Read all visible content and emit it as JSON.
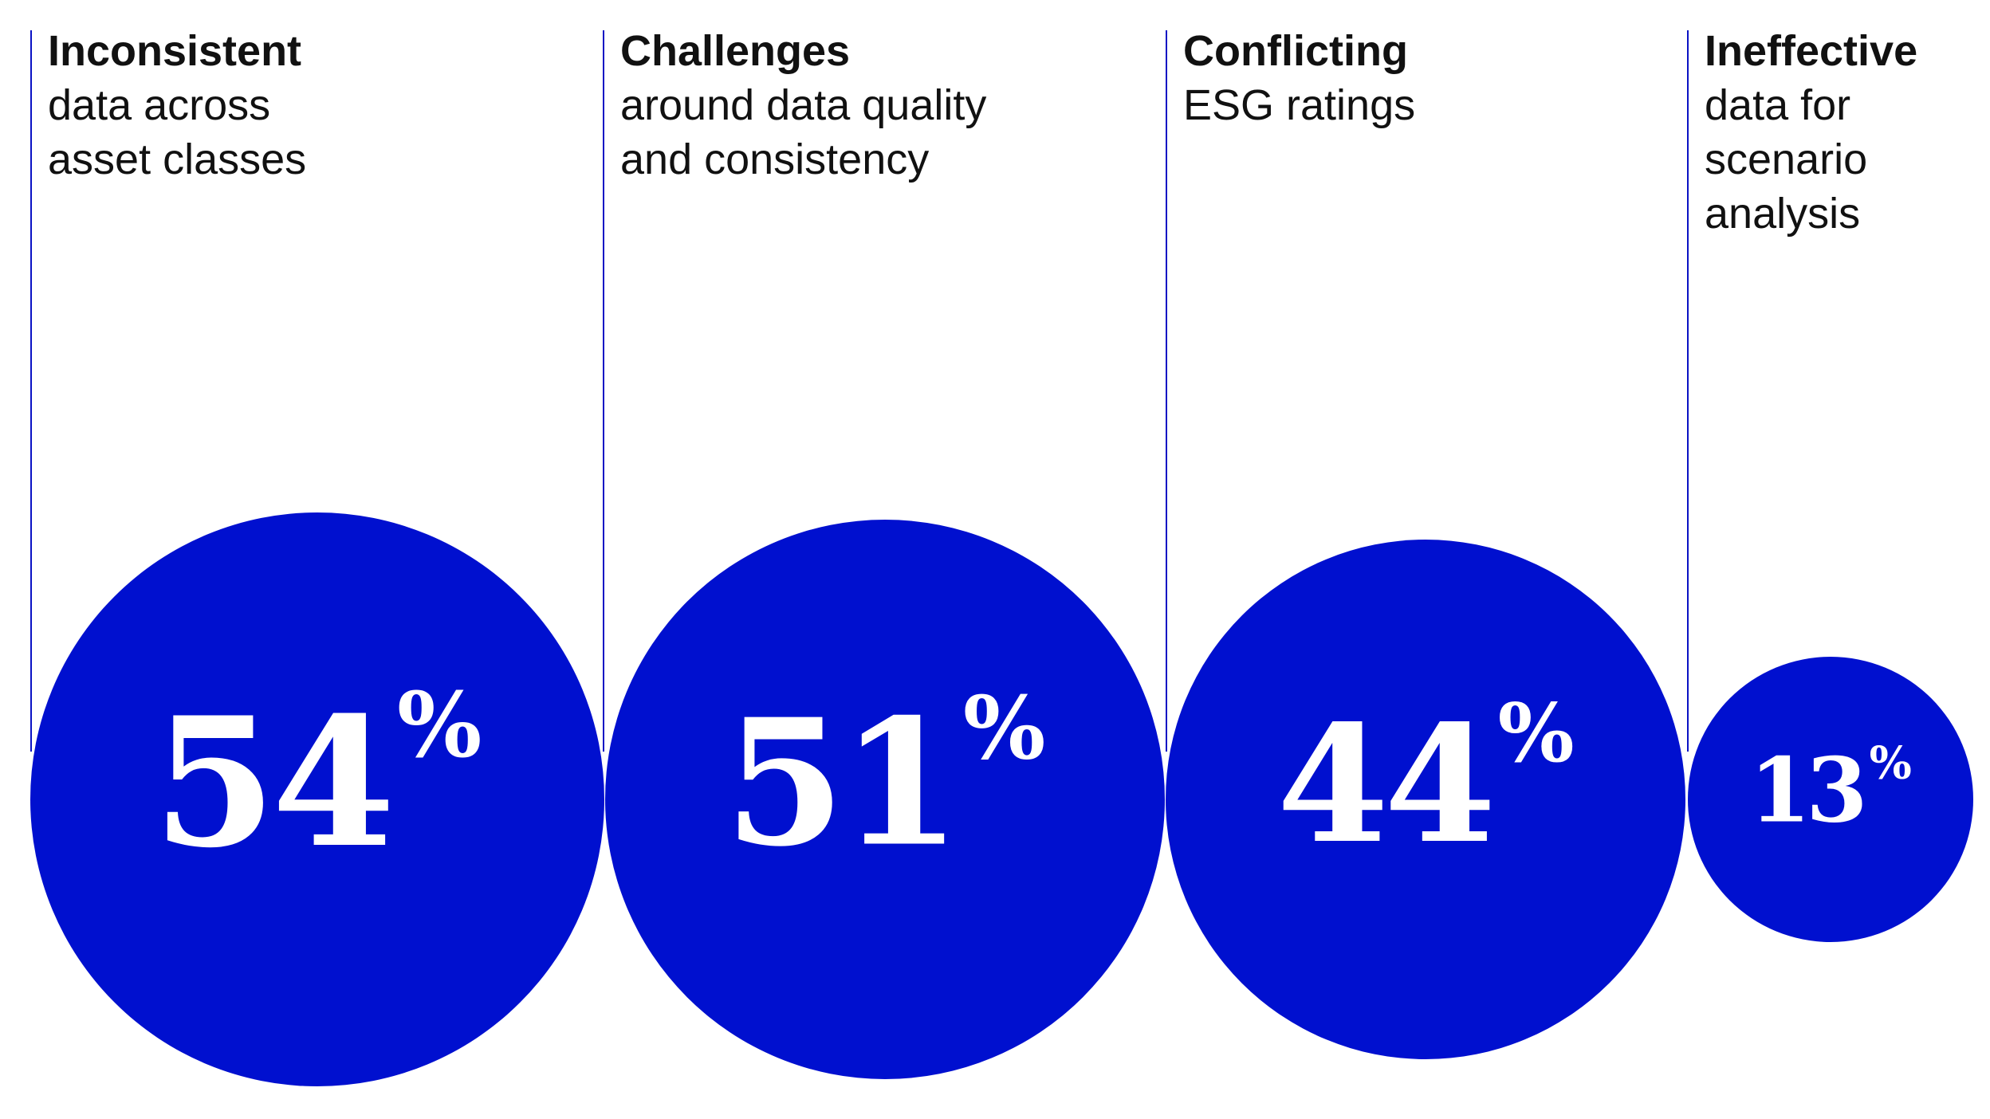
{
  "colors": {
    "bubble": "#0010cf",
    "divider": "#0a12c4",
    "text": "#111111",
    "value_text": "#ffffff"
  },
  "chart_data": {
    "type": "bubble",
    "unit": "%",
    "categories": [
      "Inconsistent data across asset classes",
      "Challenges around data quality and consistency",
      "Conflicting ESG ratings",
      "Ineffective data for scenario analysis"
    ],
    "values": [
      54,
      51,
      44,
      13
    ],
    "items": [
      {
        "bold": "Inconsistent",
        "rest_lines": [
          "data across",
          "asset classes"
        ],
        "value": 54,
        "value_label": "54",
        "unit": "%"
      },
      {
        "bold": "Challenges",
        "rest_lines": [
          "around data quality",
          "and consistency"
        ],
        "value": 51,
        "value_label": "51",
        "unit": "%"
      },
      {
        "bold": "Conflicting",
        "rest_lines": [
          "ESG ratings"
        ],
        "value": 44,
        "value_label": "44",
        "unit": "%"
      },
      {
        "bold": "Ineffective",
        "rest_lines": [
          "data for",
          "scenario",
          "analysis"
        ],
        "value": 13,
        "value_label": "13",
        "unit": "%"
      }
    ]
  }
}
